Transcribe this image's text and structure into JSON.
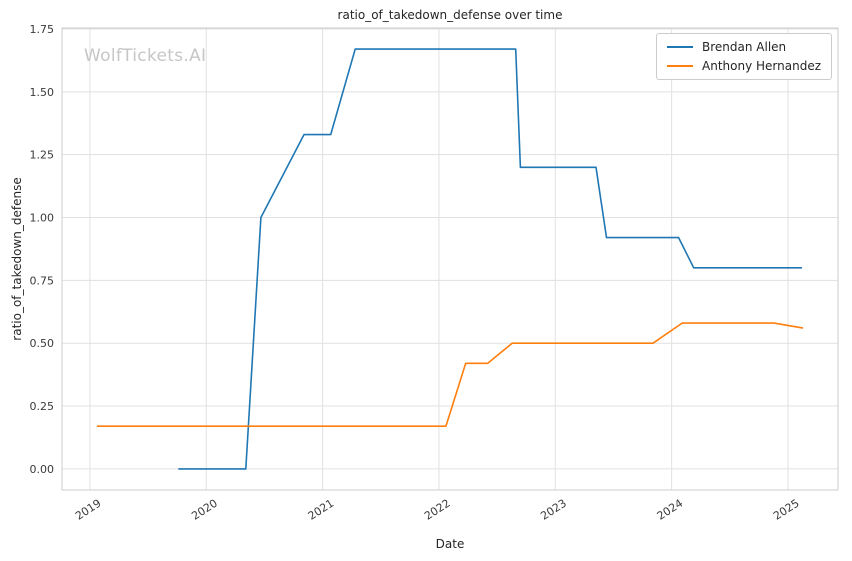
{
  "watermark": "WolfTickets.AI",
  "chart_data": {
    "type": "line",
    "title": "ratio_of_takedown_defense over time",
    "xlabel": "Date",
    "ylabel": "ratio_of_takedown_defense",
    "xlim": [
      2018.76,
      2025.43
    ],
    "ylim": [
      -0.084,
      1.754
    ],
    "grid": true,
    "legend_position": "upper right",
    "x_ticks": {
      "values": [
        2019,
        2020,
        2021,
        2022,
        2023,
        2024,
        2025
      ],
      "labels": [
        "2019",
        "2020",
        "2021",
        "2022",
        "2023",
        "2024",
        "2025"
      ]
    },
    "y_ticks": {
      "values": [
        0.0,
        0.25,
        0.5,
        0.75,
        1.0,
        1.25,
        1.5,
        1.75
      ],
      "labels": [
        "0.00",
        "0.25",
        "0.50",
        "0.75",
        "1.00",
        "1.25",
        "1.50",
        "1.75"
      ]
    },
    "series": [
      {
        "name": "Brendan Allen",
        "color": "#1f77b4",
        "points": [
          [
            2019.76,
            0.0
          ],
          [
            2020.34,
            0.0
          ],
          [
            2020.47,
            1.0
          ],
          [
            2020.84,
            1.33
          ],
          [
            2021.07,
            1.33
          ],
          [
            2021.28,
            1.67
          ],
          [
            2022.66,
            1.67
          ],
          [
            2022.7,
            1.2
          ],
          [
            2023.35,
            1.2
          ],
          [
            2023.44,
            0.92
          ],
          [
            2024.06,
            0.92
          ],
          [
            2024.19,
            0.8
          ],
          [
            2025.12,
            0.8
          ]
        ]
      },
      {
        "name": "Anthony Hernandez",
        "color": "#ff7f0e",
        "points": [
          [
            2019.06,
            0.17
          ],
          [
            2022.06,
            0.17
          ],
          [
            2022.23,
            0.42
          ],
          [
            2022.42,
            0.42
          ],
          [
            2022.63,
            0.5
          ],
          [
            2023.84,
            0.5
          ],
          [
            2024.09,
            0.58
          ],
          [
            2024.88,
            0.58
          ],
          [
            2025.13,
            0.56
          ]
        ]
      }
    ]
  }
}
